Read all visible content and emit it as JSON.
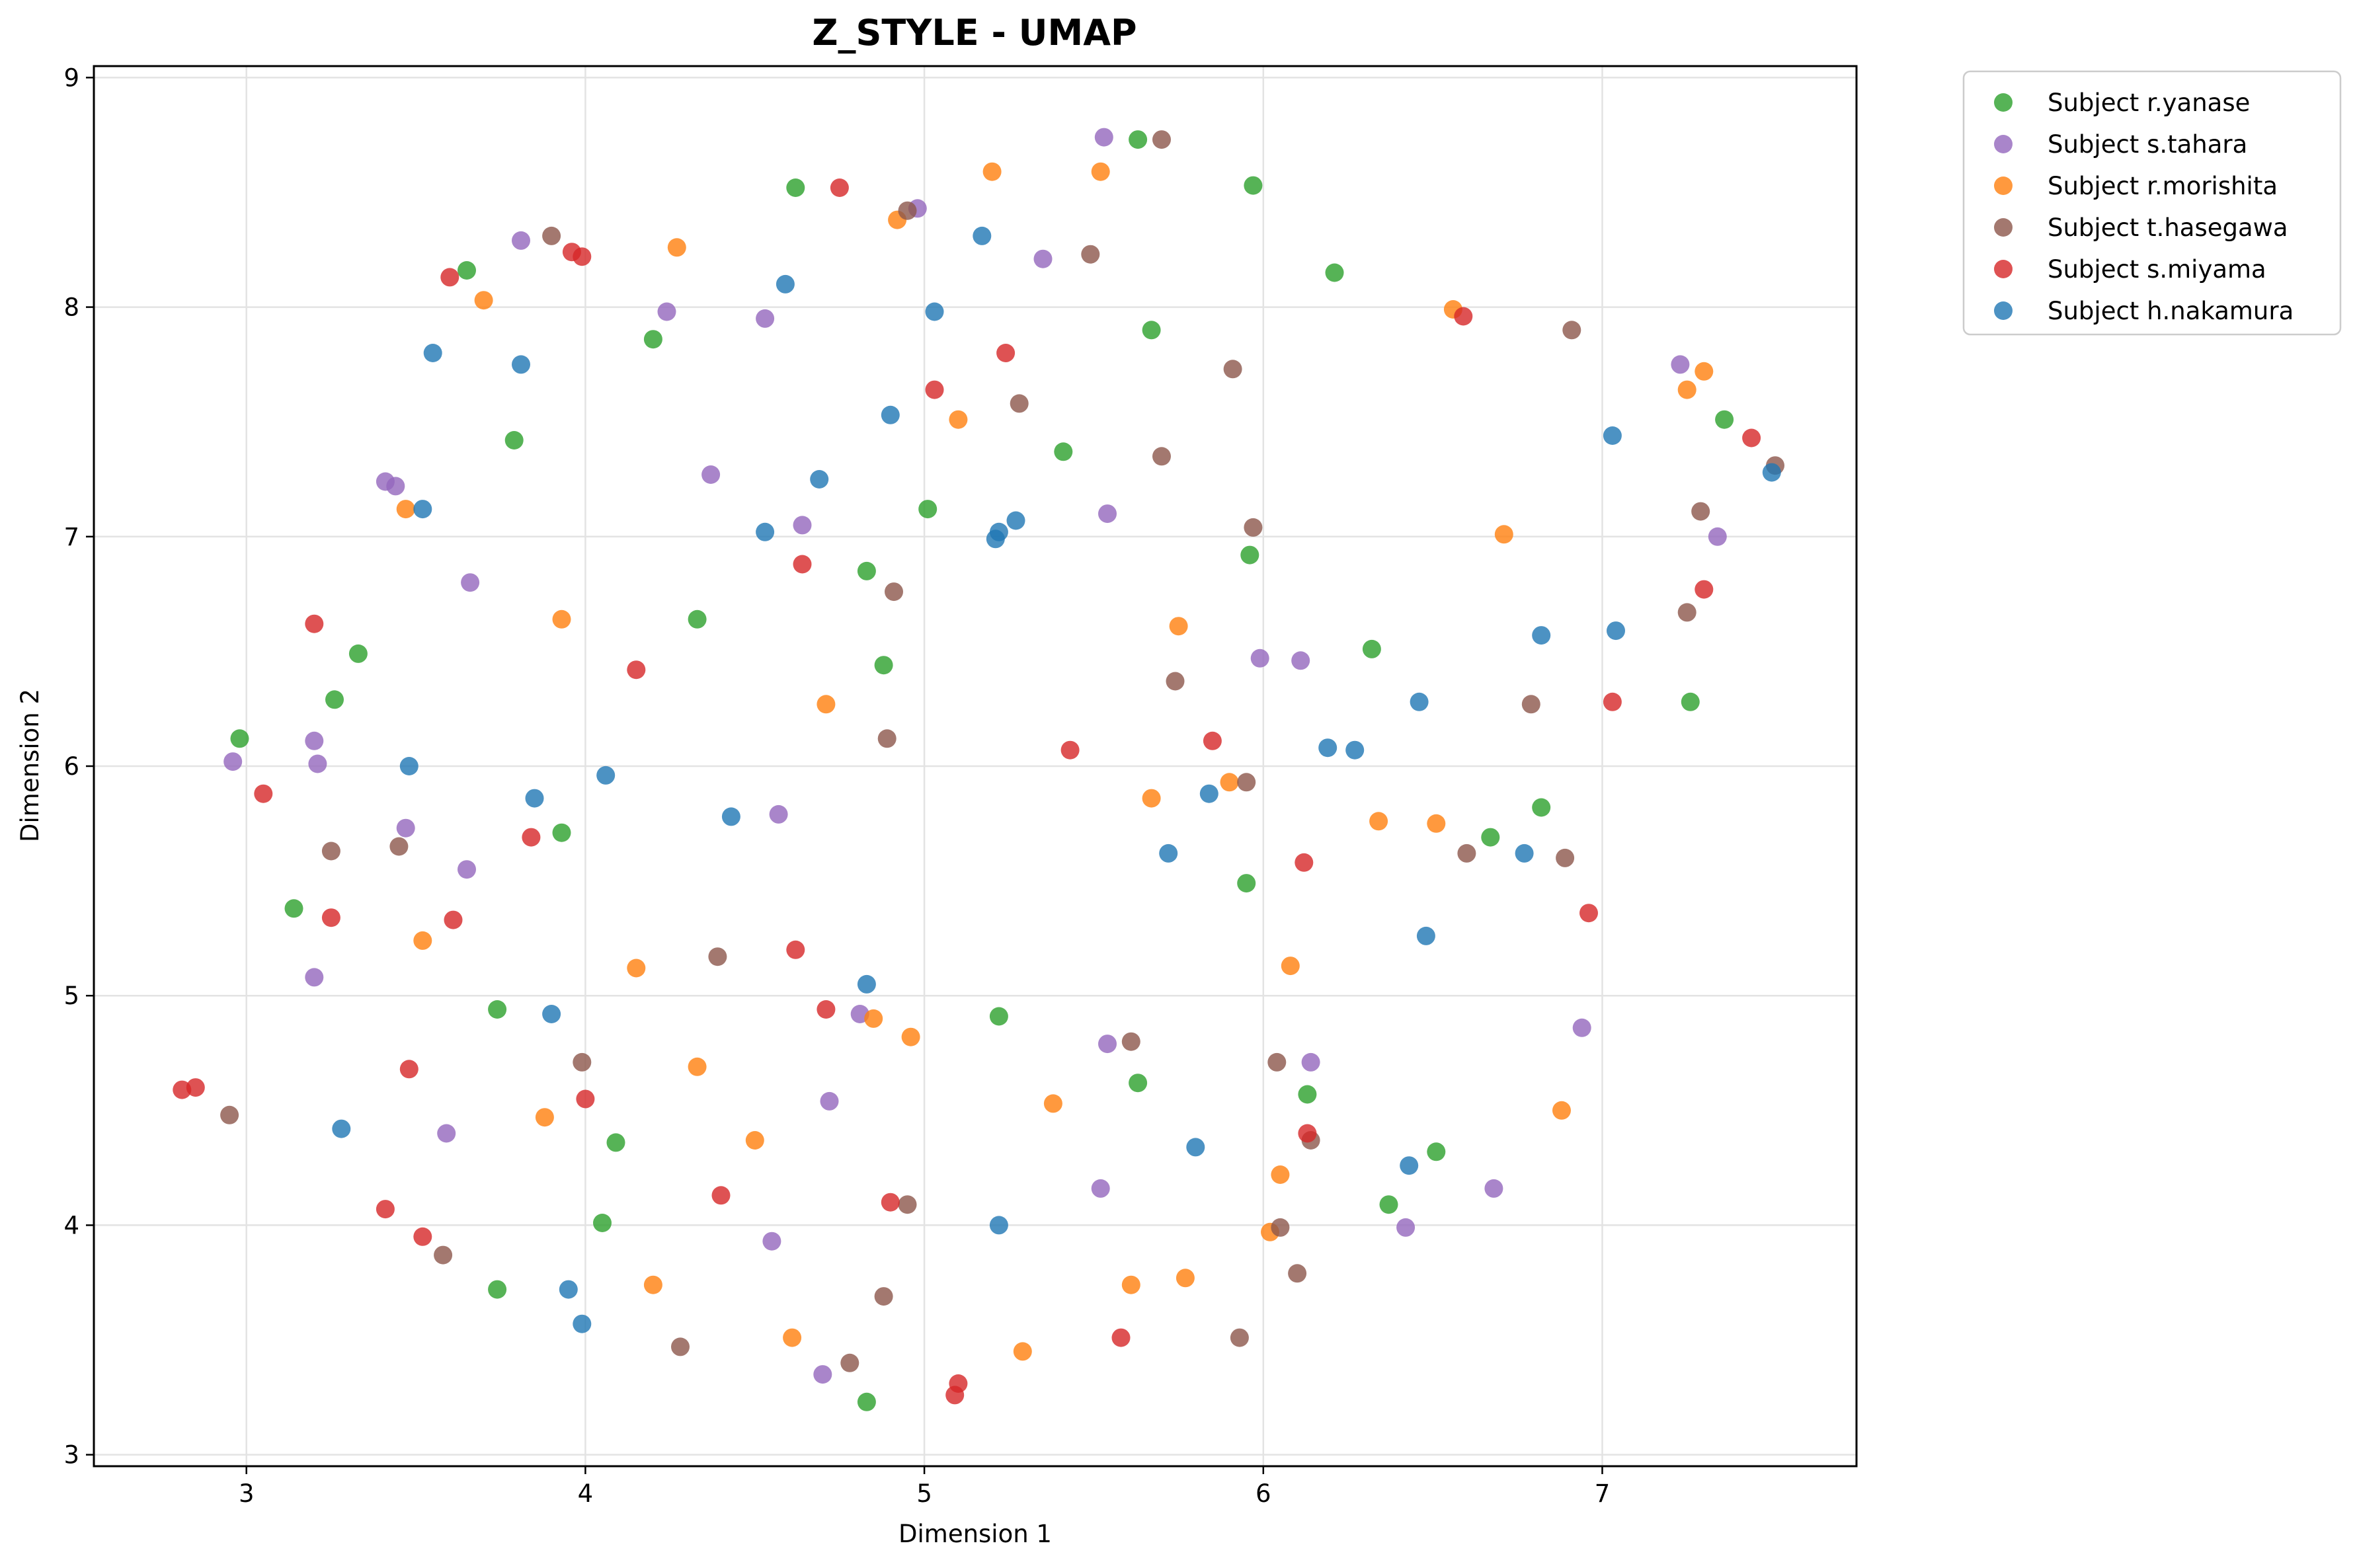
{
  "chart_data": {
    "type": "scatter",
    "title": "Z_STYLE - UMAP",
    "xlabel": "Dimension 1",
    "ylabel": "Dimension 2",
    "xlim": [
      2.55,
      7.75
    ],
    "ylim": [
      2.95,
      9.05
    ],
    "x_ticks": [
      3,
      4,
      5,
      6,
      7
    ],
    "y_ticks": [
      3,
      4,
      5,
      6,
      7,
      8,
      9
    ],
    "grid": true,
    "legend_position": "outside-top-right",
    "series": [
      {
        "name": "Subject r.yanase",
        "color": "#2ca02c",
        "points": [
          [
            4.62,
            8.52
          ],
          [
            5.63,
            8.73
          ],
          [
            5.97,
            8.53
          ],
          [
            3.65,
            8.16
          ],
          [
            6.21,
            8.15
          ],
          [
            4.2,
            7.86
          ],
          [
            5.67,
            7.9
          ],
          [
            3.79,
            7.42
          ],
          [
            5.41,
            7.37
          ],
          [
            7.36,
            7.51
          ],
          [
            5.01,
            7.12
          ],
          [
            4.83,
            6.85
          ],
          [
            5.96,
            6.92
          ],
          [
            4.33,
            6.64
          ],
          [
            3.33,
            6.49
          ],
          [
            6.32,
            6.51
          ],
          [
            4.88,
            6.44
          ],
          [
            3.26,
            6.29
          ],
          [
            7.26,
            6.28
          ],
          [
            2.98,
            6.12
          ],
          [
            3.93,
            5.71
          ],
          [
            6.82,
            5.82
          ],
          [
            6.67,
            5.69
          ],
          [
            5.95,
            5.49
          ],
          [
            3.14,
            5.38
          ],
          [
            3.74,
            4.94
          ],
          [
            5.22,
            4.91
          ],
          [
            5.63,
            4.62
          ],
          [
            6.13,
            4.57
          ],
          [
            4.09,
            4.36
          ],
          [
            6.51,
            4.32
          ],
          [
            4.05,
            4.01
          ],
          [
            6.37,
            4.09
          ],
          [
            3.74,
            3.72
          ],
          [
            4.83,
            3.23
          ]
        ]
      },
      {
        "name": "Subject s.tahara",
        "color": "#9467bd",
        "points": [
          [
            5.53,
            8.74
          ],
          [
            4.98,
            8.43
          ],
          [
            3.81,
            8.29
          ],
          [
            5.35,
            8.21
          ],
          [
            4.24,
            7.98
          ],
          [
            4.53,
            7.95
          ],
          [
            7.23,
            7.75
          ],
          [
            3.41,
            7.24
          ],
          [
            3.44,
            7.22
          ],
          [
            4.37,
            7.27
          ],
          [
            4.64,
            7.05
          ],
          [
            5.54,
            7.1
          ],
          [
            7.34,
            7.0
          ],
          [
            3.66,
            6.8
          ],
          [
            5.99,
            6.47
          ],
          [
            6.11,
            6.46
          ],
          [
            3.2,
            6.11
          ],
          [
            2.96,
            6.02
          ],
          [
            3.21,
            6.01
          ],
          [
            4.57,
            5.79
          ],
          [
            3.47,
            5.73
          ],
          [
            3.65,
            5.55
          ],
          [
            3.2,
            5.08
          ],
          [
            4.81,
            4.92
          ],
          [
            5.54,
            4.79
          ],
          [
            6.14,
            4.71
          ],
          [
            6.94,
            4.86
          ],
          [
            4.72,
            4.54
          ],
          [
            3.59,
            4.4
          ],
          [
            5.52,
            4.16
          ],
          [
            6.68,
            4.16
          ],
          [
            4.55,
            3.93
          ],
          [
            6.42,
            3.99
          ],
          [
            4.7,
            3.35
          ]
        ]
      },
      {
        "name": "Subject r.morishita",
        "color": "#ff7f0e",
        "points": [
          [
            5.2,
            8.59
          ],
          [
            5.52,
            8.59
          ],
          [
            4.92,
            8.38
          ],
          [
            4.27,
            8.26
          ],
          [
            3.7,
            8.03
          ],
          [
            6.56,
            7.99
          ],
          [
            5.1,
            7.51
          ],
          [
            7.25,
            7.64
          ],
          [
            7.3,
            7.72
          ],
          [
            3.47,
            7.12
          ],
          [
            6.71,
            7.01
          ],
          [
            3.93,
            6.64
          ],
          [
            5.75,
            6.61
          ],
          [
            4.71,
            6.27
          ],
          [
            5.67,
            5.86
          ],
          [
            5.9,
            5.93
          ],
          [
            6.34,
            5.76
          ],
          [
            6.51,
            5.75
          ],
          [
            3.52,
            5.24
          ],
          [
            4.15,
            5.12
          ],
          [
            6.08,
            5.13
          ],
          [
            4.85,
            4.9
          ],
          [
            4.96,
            4.82
          ],
          [
            4.33,
            4.69
          ],
          [
            6.88,
            4.5
          ],
          [
            3.88,
            4.47
          ],
          [
            4.5,
            4.37
          ],
          [
            5.38,
            4.53
          ],
          [
            6.05,
            4.22
          ],
          [
            6.02,
            3.97
          ],
          [
            4.2,
            3.74
          ],
          [
            5.61,
            3.74
          ],
          [
            5.77,
            3.77
          ],
          [
            4.61,
            3.51
          ],
          [
            5.29,
            3.45
          ]
        ]
      },
      {
        "name": "Subject t.hasegawa",
        "color": "#8c564b",
        "points": [
          [
            5.7,
            8.73
          ],
          [
            3.9,
            8.31
          ],
          [
            4.95,
            8.42
          ],
          [
            5.49,
            8.23
          ],
          [
            6.91,
            7.9
          ],
          [
            5.91,
            7.73
          ],
          [
            5.28,
            7.58
          ],
          [
            5.7,
            7.35
          ],
          [
            7.51,
            7.31
          ],
          [
            7.29,
            7.11
          ],
          [
            5.97,
            7.04
          ],
          [
            4.91,
            6.76
          ],
          [
            7.25,
            6.67
          ],
          [
            5.74,
            6.37
          ],
          [
            6.79,
            6.27
          ],
          [
            4.89,
            6.12
          ],
          [
            5.95,
            5.93
          ],
          [
            3.25,
            5.63
          ],
          [
            3.45,
            5.65
          ],
          [
            6.6,
            5.62
          ],
          [
            6.89,
            5.6
          ],
          [
            4.39,
            5.17
          ],
          [
            5.61,
            4.8
          ],
          [
            6.04,
            4.71
          ],
          [
            3.99,
            4.71
          ],
          [
            2.95,
            4.48
          ],
          [
            6.14,
            4.37
          ],
          [
            4.95,
            4.09
          ],
          [
            3.58,
            3.87
          ],
          [
            6.05,
            3.99
          ],
          [
            6.1,
            3.79
          ],
          [
            4.88,
            3.69
          ],
          [
            4.28,
            3.47
          ],
          [
            4.78,
            3.4
          ],
          [
            5.93,
            3.51
          ]
        ]
      },
      {
        "name": "Subject s.miyama",
        "color": "#d62728",
        "points": [
          [
            4.75,
            8.52
          ],
          [
            3.96,
            8.24
          ],
          [
            3.99,
            8.22
          ],
          [
            3.6,
            8.13
          ],
          [
            6.59,
            7.96
          ],
          [
            5.24,
            7.8
          ],
          [
            5.03,
            7.64
          ],
          [
            7.44,
            7.43
          ],
          [
            4.64,
            6.88
          ],
          [
            7.3,
            6.77
          ],
          [
            3.2,
            6.62
          ],
          [
            4.15,
            6.42
          ],
          [
            7.03,
            6.28
          ],
          [
            5.43,
            6.07
          ],
          [
            5.85,
            6.11
          ],
          [
            3.05,
            5.88
          ],
          [
            3.84,
            5.69
          ],
          [
            6.12,
            5.58
          ],
          [
            3.25,
            5.34
          ],
          [
            3.61,
            5.33
          ],
          [
            6.96,
            5.36
          ],
          [
            4.62,
            5.2
          ],
          [
            4.71,
            4.94
          ],
          [
            2.81,
            4.59
          ],
          [
            2.85,
            4.6
          ],
          [
            3.48,
            4.68
          ],
          [
            4.0,
            4.55
          ],
          [
            6.13,
            4.4
          ],
          [
            4.4,
            4.13
          ],
          [
            4.9,
            4.1
          ],
          [
            3.41,
            4.07
          ],
          [
            3.52,
            3.95
          ],
          [
            5.58,
            3.51
          ],
          [
            5.1,
            3.31
          ],
          [
            5.09,
            3.26
          ]
        ]
      },
      {
        "name": "Subject h.nakamura",
        "color": "#1f77b4",
        "points": [
          [
            5.17,
            8.31
          ],
          [
            4.59,
            8.1
          ],
          [
            5.03,
            7.98
          ],
          [
            3.55,
            7.8
          ],
          [
            3.81,
            7.75
          ],
          [
            4.9,
            7.53
          ],
          [
            7.03,
            7.44
          ],
          [
            7.5,
            7.28
          ],
          [
            4.69,
            7.25
          ],
          [
            3.52,
            7.12
          ],
          [
            4.53,
            7.02
          ],
          [
            5.27,
            7.07
          ],
          [
            5.22,
            7.02
          ],
          [
            5.21,
            6.99
          ],
          [
            6.82,
            6.57
          ],
          [
            7.04,
            6.59
          ],
          [
            6.46,
            6.28
          ],
          [
            6.19,
            6.08
          ],
          [
            6.27,
            6.07
          ],
          [
            3.48,
            6.0
          ],
          [
            4.06,
            5.96
          ],
          [
            3.85,
            5.86
          ],
          [
            5.84,
            5.88
          ],
          [
            4.43,
            5.78
          ],
          [
            5.72,
            5.62
          ],
          [
            6.77,
            5.62
          ],
          [
            6.48,
            5.26
          ],
          [
            4.83,
            5.05
          ],
          [
            3.9,
            4.92
          ],
          [
            3.28,
            4.42
          ],
          [
            5.8,
            4.34
          ],
          [
            6.43,
            4.26
          ],
          [
            5.22,
            4.0
          ],
          [
            3.95,
            3.72
          ],
          [
            3.99,
            3.57
          ]
        ]
      }
    ]
  }
}
